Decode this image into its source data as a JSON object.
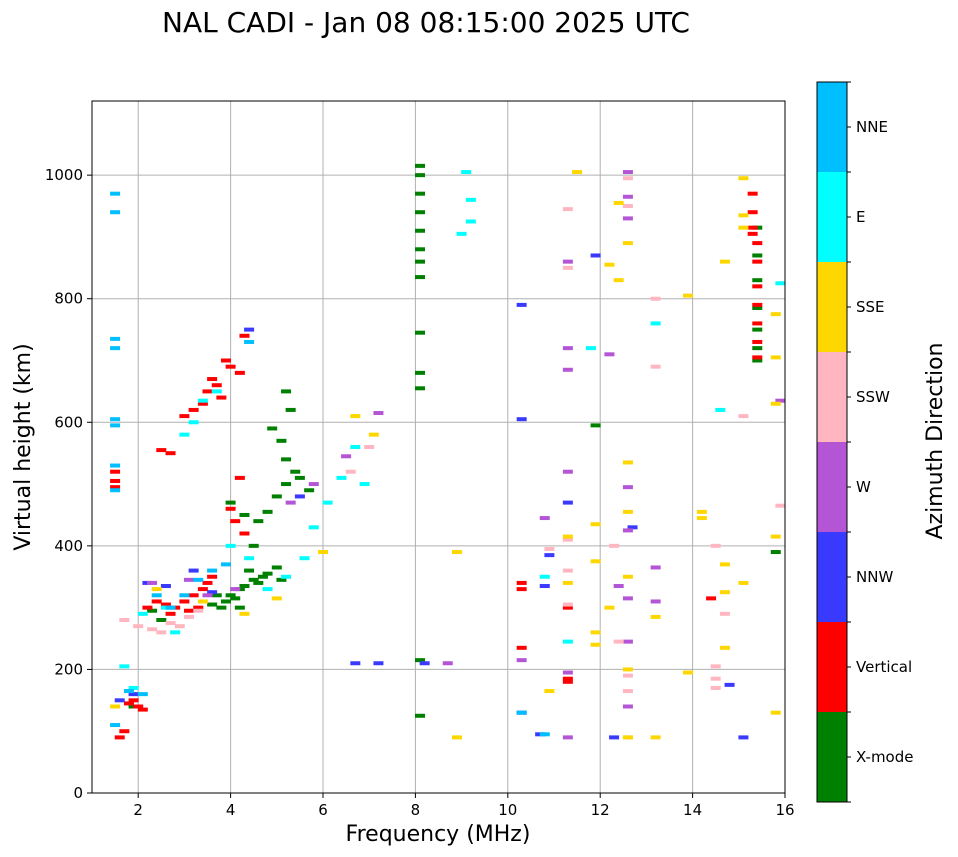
{
  "chart_data": {
    "type": "scatter",
    "title": "NAL CADI - Jan 08 08:15:00 2025 UTC",
    "xlabel": "Frequency (MHz)",
    "ylabel": "Virtual height (km)",
    "xlim": [
      1,
      16
    ],
    "ylim": [
      0,
      1120
    ],
    "xticks": [
      2,
      4,
      6,
      8,
      10,
      12,
      14,
      16
    ],
    "yticks": [
      0,
      200,
      400,
      600,
      800,
      1000
    ],
    "grid": true,
    "colorbar": {
      "title": "Azimuth Direction",
      "categories": [
        {
          "name": "X-mode",
          "color": "#008000"
        },
        {
          "name": "Vertical",
          "color": "#ff0000"
        },
        {
          "name": "NNW",
          "color": "#3a3aff"
        },
        {
          "name": "W",
          "color": "#b455d6"
        },
        {
          "name": "SSW",
          "color": "#ffb6c1"
        },
        {
          "name": "SSE",
          "color": "#ffd700"
        },
        {
          "name": "E",
          "color": "#00ffff"
        },
        {
          "name": "NNE",
          "color": "#00bfff"
        }
      ]
    },
    "series": [
      {
        "name": "X-mode",
        "points": [
          [
            1.9,
            140
          ],
          [
            2.3,
            295
          ],
          [
            2.5,
            280
          ],
          [
            3.6,
            305
          ],
          [
            3.8,
            300
          ],
          [
            3.9,
            310
          ],
          [
            4.0,
            320
          ],
          [
            4.1,
            315
          ],
          [
            4.2,
            330
          ],
          [
            4.3,
            335
          ],
          [
            4.5,
            345
          ],
          [
            4.6,
            340
          ],
          [
            4.7,
            350
          ],
          [
            4.8,
            355
          ],
          [
            5.0,
            365
          ],
          [
            5.1,
            345
          ],
          [
            4.4,
            360
          ],
          [
            3.7,
            320
          ],
          [
            4.2,
            300
          ],
          [
            4.0,
            470
          ],
          [
            4.6,
            440
          ],
          [
            4.8,
            455
          ],
          [
            5.0,
            480
          ],
          [
            5.2,
            500
          ],
          [
            5.4,
            520
          ],
          [
            5.5,
            510
          ],
          [
            5.7,
            490
          ],
          [
            5.2,
            540
          ],
          [
            5.1,
            570
          ],
          [
            4.9,
            590
          ],
          [
            5.3,
            620
          ],
          [
            5.2,
            650
          ],
          [
            4.5,
            400
          ],
          [
            4.3,
            450
          ],
          [
            8.1,
            1015
          ],
          [
            8.1,
            1000
          ],
          [
            8.1,
            970
          ],
          [
            8.1,
            940
          ],
          [
            8.1,
            910
          ],
          [
            8.1,
            880
          ],
          [
            8.1,
            860
          ],
          [
            8.1,
            835
          ],
          [
            8.1,
            745
          ],
          [
            8.1,
            680
          ],
          [
            8.1,
            655
          ],
          [
            8.1,
            215
          ],
          [
            8.1,
            125
          ],
          [
            11.9,
            595
          ],
          [
            15.4,
            700
          ],
          [
            15.4,
            720
          ],
          [
            15.4,
            750
          ],
          [
            15.4,
            785
          ],
          [
            15.4,
            830
          ],
          [
            15.4,
            870
          ],
          [
            15.4,
            915
          ],
          [
            15.8,
            390
          ]
        ]
      },
      {
        "name": "Vertical",
        "points": [
          [
            1.5,
            520
          ],
          [
            1.5,
            505
          ],
          [
            1.5,
            495
          ],
          [
            1.6,
            90
          ],
          [
            1.7,
            100
          ],
          [
            1.8,
            145
          ],
          [
            1.9,
            150
          ],
          [
            2.0,
            140
          ],
          [
            2.1,
            135
          ],
          [
            2.2,
            300
          ],
          [
            2.4,
            310
          ],
          [
            2.6,
            305
          ],
          [
            2.7,
            290
          ],
          [
            2.8,
            300
          ],
          [
            3.0,
            310
          ],
          [
            3.2,
            320
          ],
          [
            3.4,
            330
          ],
          [
            3.5,
            340
          ],
          [
            3.6,
            350
          ],
          [
            3.3,
            300
          ],
          [
            3.1,
            295
          ],
          [
            2.5,
            555
          ],
          [
            2.7,
            550
          ],
          [
            3.0,
            610
          ],
          [
            3.2,
            620
          ],
          [
            3.4,
            630
          ],
          [
            3.5,
            650
          ],
          [
            3.6,
            670
          ],
          [
            3.7,
            660
          ],
          [
            3.8,
            640
          ],
          [
            3.9,
            700
          ],
          [
            4.0,
            690
          ],
          [
            4.2,
            680
          ],
          [
            4.3,
            740
          ],
          [
            4.0,
            460
          ],
          [
            4.1,
            440
          ],
          [
            4.2,
            510
          ],
          [
            4.3,
            420
          ],
          [
            10.3,
            340
          ],
          [
            10.3,
            330
          ],
          [
            10.3,
            235
          ],
          [
            11.3,
            300
          ],
          [
            11.3,
            185
          ],
          [
            11.3,
            180
          ],
          [
            14.4,
            315
          ],
          [
            15.3,
            970
          ],
          [
            15.3,
            940
          ],
          [
            15.3,
            915
          ],
          [
            15.3,
            905
          ],
          [
            15.4,
            890
          ],
          [
            15.4,
            860
          ],
          [
            15.4,
            820
          ],
          [
            15.4,
            790
          ],
          [
            15.4,
            760
          ],
          [
            15.4,
            730
          ],
          [
            15.4,
            705
          ]
        ]
      },
      {
        "name": "NNW",
        "points": [
          [
            1.6,
            150
          ],
          [
            1.9,
            160
          ],
          [
            2.2,
            340
          ],
          [
            2.6,
            335
          ],
          [
            3.2,
            360
          ],
          [
            3.6,
            325
          ],
          [
            4.4,
            750
          ],
          [
            5.5,
            480
          ],
          [
            6.7,
            210
          ],
          [
            7.2,
            210
          ],
          [
            8.2,
            210
          ],
          [
            10.3,
            790
          ],
          [
            10.3,
            605
          ],
          [
            10.9,
            385
          ],
          [
            10.8,
            335
          ],
          [
            10.3,
            130
          ],
          [
            10.7,
            95
          ],
          [
            11.3,
            470
          ],
          [
            11.9,
            870
          ],
          [
            12.7,
            430
          ],
          [
            14.8,
            175
          ],
          [
            15.1,
            90
          ],
          [
            12.3,
            90
          ]
        ]
      },
      {
        "name": "W",
        "points": [
          [
            2.3,
            340
          ],
          [
            3.1,
            345
          ],
          [
            3.5,
            320
          ],
          [
            4.1,
            330
          ],
          [
            5.3,
            470
          ],
          [
            5.8,
            500
          ],
          [
            6.5,
            545
          ],
          [
            7.2,
            615
          ],
          [
            8.7,
            210
          ],
          [
            10.8,
            445
          ],
          [
            10.3,
            215
          ],
          [
            11.3,
            860
          ],
          [
            11.3,
            720
          ],
          [
            11.3,
            685
          ],
          [
            11.3,
            520
          ],
          [
            11.3,
            195
          ],
          [
            12.2,
            710
          ],
          [
            12.4,
            335
          ],
          [
            12.6,
            1005
          ],
          [
            12.6,
            965
          ],
          [
            12.6,
            930
          ],
          [
            12.6,
            495
          ],
          [
            12.6,
            425
          ],
          [
            12.6,
            315
          ],
          [
            12.6,
            245
          ],
          [
            12.6,
            140
          ],
          [
            13.2,
            365
          ],
          [
            13.2,
            310
          ],
          [
            15.9,
            635
          ],
          [
            11.3,
            90
          ]
        ]
      },
      {
        "name": "SSW",
        "points": [
          [
            1.7,
            280
          ],
          [
            2.0,
            270
          ],
          [
            2.3,
            265
          ],
          [
            2.5,
            260
          ],
          [
            2.7,
            275
          ],
          [
            2.9,
            270
          ],
          [
            3.1,
            285
          ],
          [
            3.3,
            295
          ],
          [
            6.6,
            520
          ],
          [
            7.0,
            560
          ],
          [
            10.9,
            395
          ],
          [
            11.3,
            945
          ],
          [
            11.3,
            850
          ],
          [
            11.3,
            410
          ],
          [
            11.3,
            360
          ],
          [
            11.3,
            305
          ],
          [
            12.3,
            400
          ],
          [
            12.4,
            245
          ],
          [
            12.6,
            995
          ],
          [
            12.6,
            950
          ],
          [
            12.6,
            190
          ],
          [
            12.6,
            165
          ],
          [
            12.6,
            90
          ],
          [
            13.2,
            690
          ],
          [
            13.2,
            800
          ],
          [
            14.5,
            400
          ],
          [
            14.5,
            205
          ],
          [
            14.5,
            185
          ],
          [
            14.5,
            170
          ],
          [
            14.7,
            290
          ],
          [
            15.1,
            610
          ],
          [
            15.9,
            465
          ]
        ]
      },
      {
        "name": "SSE",
        "points": [
          [
            1.5,
            140
          ],
          [
            2.4,
            330
          ],
          [
            3.4,
            310
          ],
          [
            4.3,
            290
          ],
          [
            5.0,
            315
          ],
          [
            6.0,
            390
          ],
          [
            6.7,
            610
          ],
          [
            7.1,
            580
          ],
          [
            8.9,
            390
          ],
          [
            8.9,
            90
          ],
          [
            10.9,
            165
          ],
          [
            11.3,
            415
          ],
          [
            11.3,
            340
          ],
          [
            11.5,
            1005
          ],
          [
            11.9,
            435
          ],
          [
            11.9,
            375
          ],
          [
            11.9,
            260
          ],
          [
            11.9,
            240
          ],
          [
            12.2,
            855
          ],
          [
            12.2,
            300
          ],
          [
            12.4,
            955
          ],
          [
            12.4,
            830
          ],
          [
            12.6,
            890
          ],
          [
            12.6,
            535
          ],
          [
            12.6,
            455
          ],
          [
            12.6,
            350
          ],
          [
            12.6,
            200
          ],
          [
            12.6,
            90
          ],
          [
            13.2,
            285
          ],
          [
            13.2,
            90
          ],
          [
            13.9,
            805
          ],
          [
            13.9,
            195
          ],
          [
            14.2,
            455
          ],
          [
            14.2,
            445
          ],
          [
            14.7,
            860
          ],
          [
            14.7,
            370
          ],
          [
            14.7,
            325
          ],
          [
            14.7,
            235
          ],
          [
            15.1,
            995
          ],
          [
            15.1,
            935
          ],
          [
            15.1,
            915
          ],
          [
            15.1,
            340
          ],
          [
            15.8,
            775
          ],
          [
            15.8,
            705
          ],
          [
            15.8,
            630
          ],
          [
            15.8,
            415
          ],
          [
            15.8,
            130
          ]
        ]
      },
      {
        "name": "E",
        "points": [
          [
            1.7,
            205
          ],
          [
            1.9,
            170
          ],
          [
            2.1,
            290
          ],
          [
            2.6,
            300
          ],
          [
            2.8,
            260
          ],
          [
            3.0,
            580
          ],
          [
            3.2,
            600
          ],
          [
            3.4,
            635
          ],
          [
            3.7,
            650
          ],
          [
            4.0,
            400
          ],
          [
            4.4,
            380
          ],
          [
            4.8,
            330
          ],
          [
            5.2,
            350
          ],
          [
            5.6,
            380
          ],
          [
            5.8,
            430
          ],
          [
            6.1,
            470
          ],
          [
            6.4,
            510
          ],
          [
            6.7,
            560
          ],
          [
            6.9,
            500
          ],
          [
            9.1,
            1005
          ],
          [
            9.2,
            960
          ],
          [
            9.2,
            925
          ],
          [
            9.0,
            905
          ],
          [
            10.8,
            350
          ],
          [
            11.3,
            245
          ],
          [
            11.8,
            720
          ],
          [
            13.2,
            760
          ],
          [
            14.6,
            620
          ],
          [
            15.9,
            825
          ]
        ]
      },
      {
        "name": "NNE",
        "points": [
          [
            1.5,
            970
          ],
          [
            1.5,
            940
          ],
          [
            1.5,
            735
          ],
          [
            1.5,
            720
          ],
          [
            1.5,
            605
          ],
          [
            1.5,
            595
          ],
          [
            1.5,
            530
          ],
          [
            1.5,
            490
          ],
          [
            1.5,
            110
          ],
          [
            1.8,
            165
          ],
          [
            2.1,
            160
          ],
          [
            2.4,
            320
          ],
          [
            2.7,
            300
          ],
          [
            3.0,
            320
          ],
          [
            3.3,
            345
          ],
          [
            3.6,
            360
          ],
          [
            3.9,
            370
          ],
          [
            4.4,
            730
          ],
          [
            10.3,
            130
          ],
          [
            10.8,
            95
          ]
        ]
      }
    ]
  }
}
